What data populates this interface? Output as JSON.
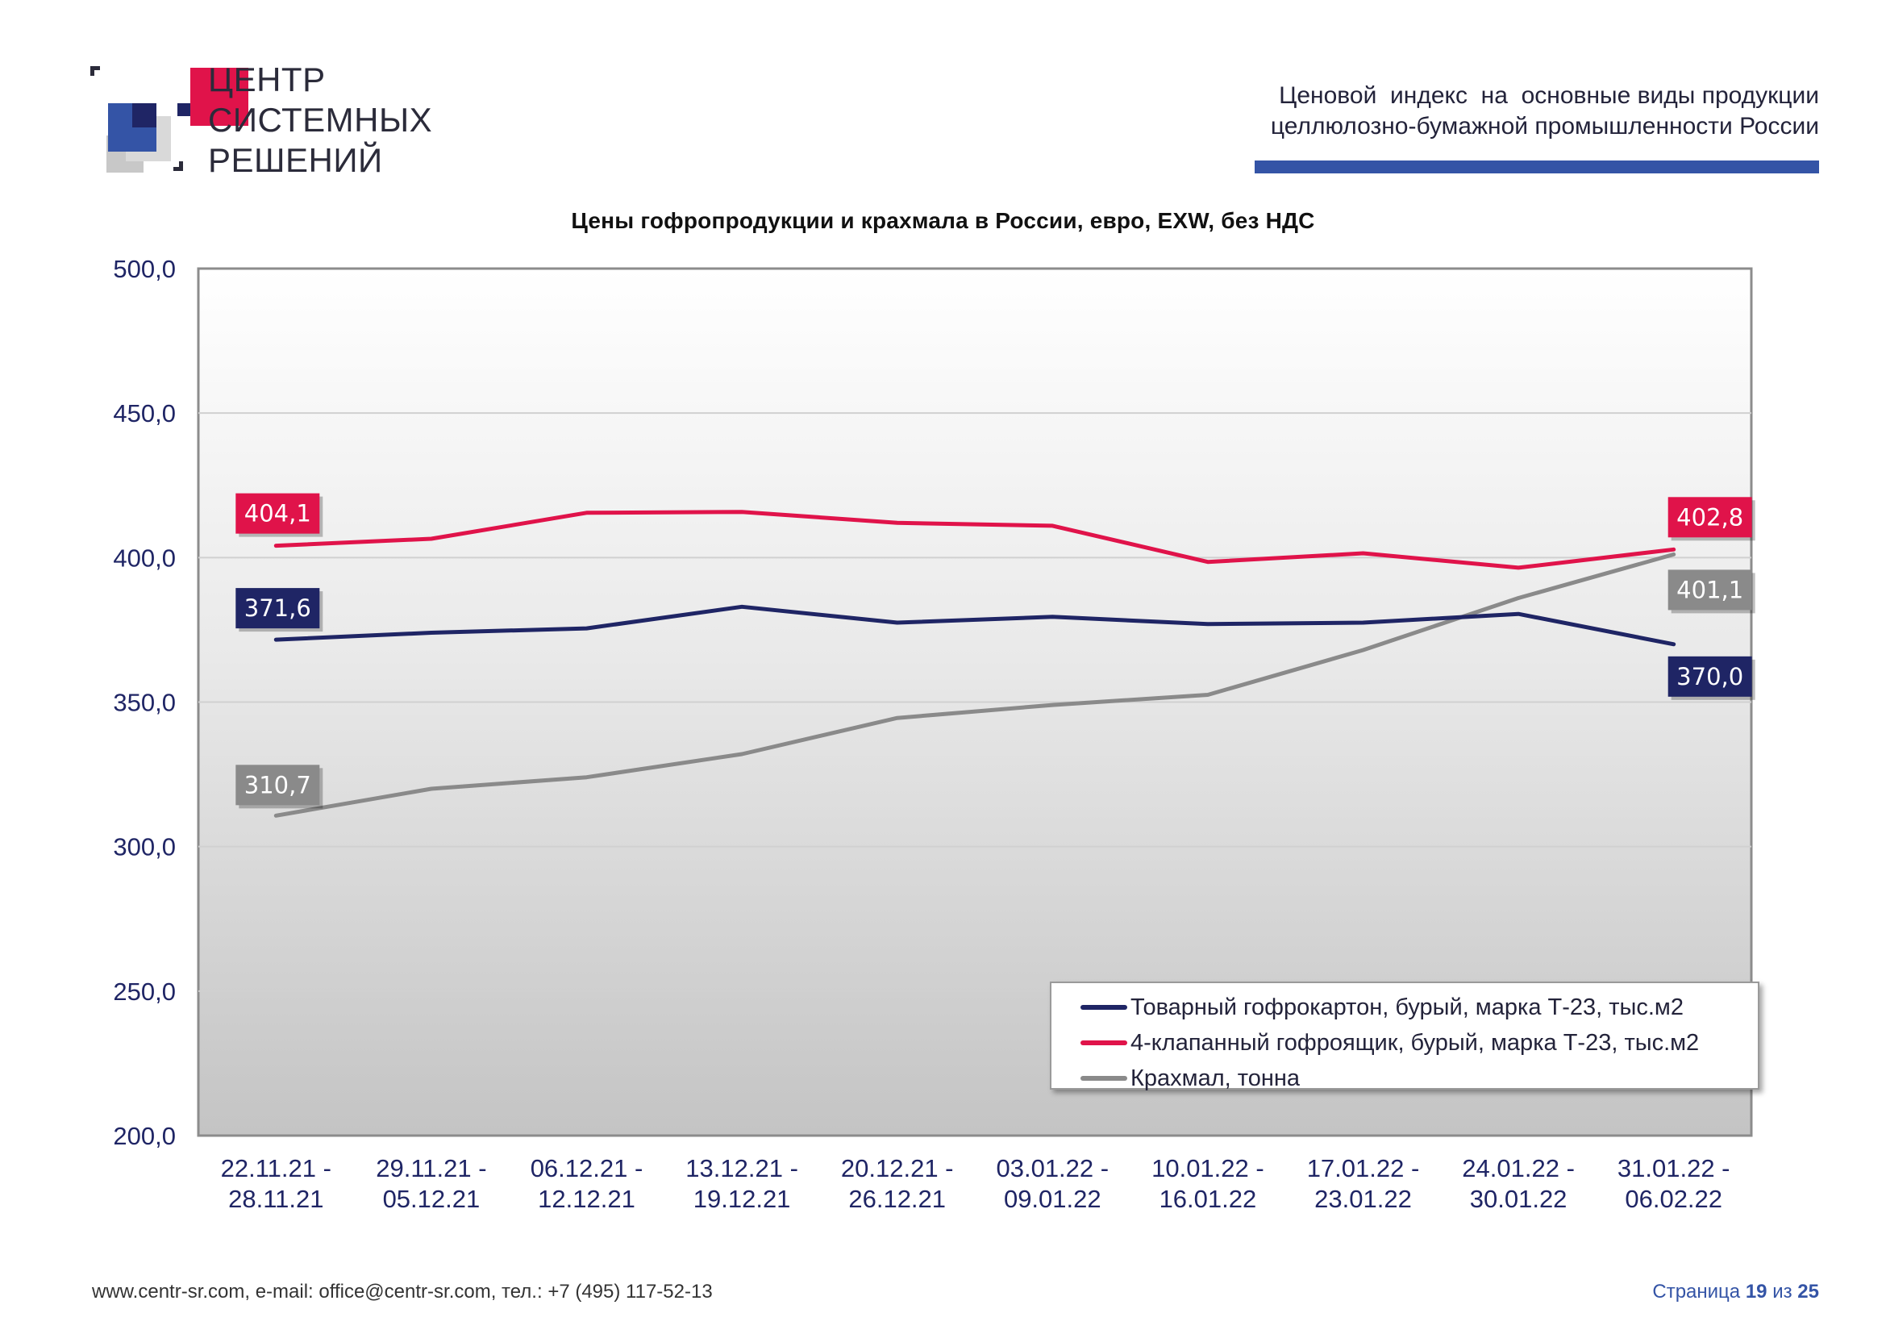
{
  "logo": {
    "lines": [
      "ЦЕНТР",
      "СИСТЕМНЫХ",
      "РЕШЕНИЙ"
    ]
  },
  "header": {
    "title_line1": "Ценовой  индекс  на  основные виды продукции",
    "title_line2": "целлюлозно-бумажной промышленности России"
  },
  "footer": {
    "contacts": "www.centr-sr.com, e-mail: office@centr-sr.com, тел.: +7 (495) 117-52-13",
    "page_prefix": "Страница",
    "page_current": "19",
    "page_sep": "из",
    "page_total": "25"
  },
  "colors": {
    "navy": "#1f2565",
    "red": "#e0134a",
    "gray": "#8a8a8a",
    "brand_blue": "#3454a6"
  },
  "chart_data": {
    "type": "line",
    "title": "Цены гофропродукции и крахмала в России, евро, EXW, без НДС",
    "categories": [
      [
        "22.11.21 -",
        "28.11.21"
      ],
      [
        "29.11.21 -",
        "05.12.21"
      ],
      [
        "06.12.21 -",
        "12.12.21"
      ],
      [
        "13.12.21 -",
        "19.12.21"
      ],
      [
        "20.12.21 -",
        "26.12.21"
      ],
      [
        "03.01.22 -",
        "09.01.22"
      ],
      [
        "10.01.22 -",
        "16.01.22"
      ],
      [
        "17.01.22 -",
        "23.01.22"
      ],
      [
        "24.01.22 -",
        "30.01.22"
      ],
      [
        "31.01.22 -",
        "06.02.22"
      ]
    ],
    "ylim": [
      200,
      500
    ],
    "yticks": [
      "200,0",
      "250,0",
      "300,0",
      "350,0",
      "400,0",
      "450,0",
      "500,0"
    ],
    "ytick_values": [
      200,
      250,
      300,
      350,
      400,
      450,
      500
    ],
    "grid": true,
    "legend_position": "bottom-right",
    "series": [
      {
        "name": "Товарный гофрокартон, бурый, марка Т-23, тыс.м2",
        "color": "#1f2565",
        "values": [
          371.6,
          374.0,
          375.5,
          383.0,
          377.5,
          379.5,
          377.0,
          377.5,
          380.5,
          370.0
        ],
        "first_label": "371,6",
        "last_label": "370,0"
      },
      {
        "name": "4-клапанный гофроящик, бурый, марка Т-23, тыс.м2",
        "color": "#e0134a",
        "values": [
          404.1,
          406.5,
          415.5,
          415.8,
          412.0,
          411.0,
          398.5,
          401.5,
          396.5,
          402.8
        ],
        "first_label": "404,1",
        "last_label": "402,8"
      },
      {
        "name": "Крахмал, тонна",
        "color": "#8a8a8a",
        "values": [
          310.7,
          320.0,
          324.0,
          332.0,
          344.5,
          349.0,
          352.5,
          368.0,
          386.0,
          401.1
        ],
        "first_label": "310,7",
        "last_label": "401,1"
      }
    ]
  }
}
